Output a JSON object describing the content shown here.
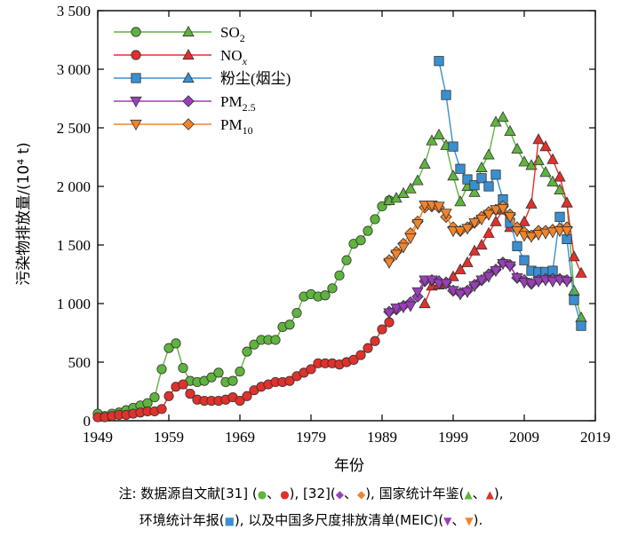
{
  "chart_data": {
    "type": "line",
    "xlabel": "年份",
    "ylabel": "污染物排放量/(10⁴ t)",
    "xlim": [
      1949,
      2019
    ],
    "ylim": [
      0,
      3500
    ],
    "xticks": [
      "1949",
      "1959",
      "1969",
      "1979",
      "1989",
      "1999",
      "2009",
      "2019"
    ],
    "yticks": [
      "0",
      "500",
      "1 000",
      "1 500",
      "2 000",
      "2 500",
      "3 000",
      "3 500"
    ],
    "legend_position": "top-left",
    "legend": [
      {
        "label": "SO",
        "sub": "2",
        "color": "#5fb43d",
        "markers": [
          "circle",
          "triangle-up"
        ]
      },
      {
        "label": "NO",
        "sub": "x",
        "sub_italic": true,
        "color": "#e0312b",
        "markers": [
          "circle",
          "triangle-up"
        ]
      },
      {
        "label": "粉尘(烟尘)",
        "sub": "",
        "color": "#3a8fd0",
        "markers": [
          "square",
          "triangle-up"
        ]
      },
      {
        "label": "PM",
        "sub": "2.5",
        "color": "#9a3fb8",
        "markers": [
          "triangle-down",
          "diamond"
        ]
      },
      {
        "label": "PM",
        "sub": "10",
        "color": "#f0842c",
        "markers": [
          "triangle-down",
          "diamond"
        ]
      }
    ],
    "series": [
      {
        "pollutant": "SO2",
        "source": "[31]",
        "marker": "circle",
        "color": "#5fb43d",
        "x": [
          1949,
          1950,
          1951,
          1952,
          1953,
          1954,
          1955,
          1956,
          1957,
          1958,
          1959,
          1960,
          1961,
          1962,
          1963,
          1964,
          1965,
          1966,
          1967,
          1968,
          1969,
          1970,
          1971,
          1972,
          1973,
          1974,
          1975,
          1976,
          1977,
          1978,
          1979,
          1980,
          1981,
          1982,
          1983,
          1984,
          1985,
          1986,
          1987,
          1988,
          1989,
          1990
        ],
        "y": [
          60,
          40,
          60,
          70,
          90,
          110,
          130,
          150,
          200,
          440,
          620,
          660,
          450,
          340,
          330,
          340,
          370,
          410,
          330,
          340,
          420,
          590,
          650,
          690,
          690,
          690,
          800,
          820,
          920,
          1060,
          1080,
          1060,
          1070,
          1130,
          1240,
          1370,
          1510,
          1540,
          1620,
          1720,
          1830,
          1880
        ]
      },
      {
        "pollutant": "NOx",
        "source": "[31]",
        "marker": "circle",
        "color": "#e0312b",
        "x": [
          1949,
          1950,
          1951,
          1952,
          1953,
          1954,
          1955,
          1956,
          1957,
          1958,
          1959,
          1960,
          1961,
          1962,
          1963,
          1964,
          1965,
          1966,
          1967,
          1968,
          1969,
          1970,
          1971,
          1972,
          1973,
          1974,
          1975,
          1976,
          1977,
          1978,
          1979,
          1980,
          1981,
          1982,
          1983,
          1984,
          1985,
          1986,
          1987,
          1988,
          1989,
          1990
        ],
        "y": [
          30,
          30,
          40,
          50,
          50,
          60,
          70,
          80,
          80,
          100,
          210,
          290,
          310,
          230,
          180,
          170,
          170,
          170,
          180,
          200,
          170,
          210,
          260,
          290,
          310,
          330,
          330,
          340,
          380,
          410,
          440,
          490,
          490,
          490,
          480,
          500,
          520,
          560,
          620,
          680,
          780,
          840
        ]
      },
      {
        "pollutant": "SO2",
        "source": "国家统计年鉴",
        "marker": "triangle-up",
        "color": "#5fb43d",
        "x": [
          1990,
          1991,
          1992,
          1993,
          1994,
          1995,
          1996,
          1997,
          1998,
          1999,
          2000,
          2001,
          2002,
          2003,
          2004,
          2005,
          2006,
          2007,
          2008,
          2009,
          2010,
          2011,
          2012,
          2013,
          2014,
          2015,
          2016,
          2017
        ],
        "y": [
          1880,
          1900,
          1940,
          1980,
          2050,
          2190,
          2390,
          2440,
          2350,
          2090,
          1870,
          2000,
          1950,
          2160,
          2270,
          2550,
          2590,
          2470,
          2320,
          2210,
          2180,
          2220,
          2120,
          2040,
          1970,
          1860,
          1110,
          880
        ]
      },
      {
        "pollutant": "NOx",
        "source": "国家统计年鉴",
        "marker": "triangle-up",
        "color": "#e0312b",
        "x": [
          1995,
          1996,
          1997,
          1998,
          1999,
          2000,
          2001,
          2002,
          2003,
          2004,
          2005,
          2006,
          2007,
          2008,
          2009,
          2010,
          2011,
          2012,
          2013,
          2014,
          2015,
          2016,
          2017
        ],
        "y": [
          1000,
          1150,
          1160,
          1170,
          1230,
          1290,
          1350,
          1450,
          1500,
          1600,
          1700,
          1800,
          1650,
          1650,
          1700,
          1850,
          2400,
          2340,
          2230,
          2080,
          1860,
          1400,
          1260
        ]
      },
      {
        "pollutant": "粉尘(烟尘)",
        "source": "环境统计年报",
        "marker": "square",
        "color": "#3a8fd0",
        "x": [
          1997,
          1998,
          1999,
          2000,
          2001,
          2002,
          2003,
          2004,
          2005,
          2006,
          2007,
          2008,
          2009,
          2010,
          2011,
          2012,
          2013,
          2014,
          2015,
          2016,
          2017
        ],
        "y": [
          3070,
          2780,
          2340,
          2150,
          2060,
          2010,
          2070,
          2000,
          2100,
          1890,
          1690,
          1490,
          1370,
          1280,
          1270,
          1270,
          1280,
          1740,
          1550,
          1030,
          810
        ]
      },
      {
        "pollutant": "PM2.5",
        "source": "[32]",
        "marker": "diamond",
        "color": "#9a3fb8",
        "x": [
          1990,
          1991,
          1992,
          1993,
          1994,
          1995,
          1996,
          1997,
          1998,
          1999,
          2000,
          2001,
          2002,
          2003,
          2004,
          2005,
          2006,
          2007,
          2008,
          2009,
          2010,
          2011,
          2012,
          2013,
          2014,
          2015
        ],
        "y": [
          930,
          950,
          980,
          1010,
          1060,
          1190,
          1200,
          1190,
          1180,
          1110,
          1090,
          1110,
          1160,
          1200,
          1250,
          1290,
          1350,
          1330,
          1220,
          1200,
          1170,
          1200,
          1210,
          1210,
          1210,
          1200
        ]
      },
      {
        "pollutant": "PM2.5",
        "source": "MEIC",
        "marker": "triangle-down",
        "color": "#9a3fb8",
        "x": [
          1990,
          1991,
          1992,
          1993,
          1994,
          1995,
          1996,
          1997,
          1998,
          1999,
          2000,
          2001,
          2002,
          2003,
          2004,
          2005,
          2006,
          2007,
          2008,
          2009,
          2010,
          2011,
          2012,
          2013,
          2014,
          2015
        ],
        "y": [
          920,
          960,
          970,
          980,
          1100,
          1200,
          1200,
          1170,
          1170,
          1110,
          1080,
          1100,
          1150,
          1200,
          1230,
          1280,
          1340,
          1320,
          1220,
          1180,
          1170,
          1190,
          1200,
          1190,
          1200,
          1190
        ]
      },
      {
        "pollutant": "PM10",
        "source": "[32]",
        "marker": "diamond",
        "color": "#f0842c",
        "x": [
          1990,
          1991,
          1992,
          1993,
          1994,
          1995,
          1996,
          1997,
          1998,
          1999,
          2000,
          2001,
          2002,
          2003,
          2004,
          2005,
          2006,
          2007,
          2008,
          2009,
          2010,
          2011,
          2012,
          2013,
          2014,
          2015
        ],
        "y": [
          1370,
          1440,
          1510,
          1600,
          1700,
          1820,
          1830,
          1820,
          1740,
          1650,
          1620,
          1650,
          1690,
          1740,
          1780,
          1800,
          1830,
          1760,
          1650,
          1610,
          1580,
          1620,
          1620,
          1630,
          1640,
          1650
        ]
      },
      {
        "pollutant": "PM10",
        "source": "MEIC",
        "marker": "triangle-down",
        "color": "#f0842c",
        "x": [
          1990,
          1991,
          1992,
          1993,
          1994,
          1995,
          1996,
          1997,
          1998,
          1999,
          2000,
          2001,
          2002,
          2003,
          2004,
          2005,
          2006,
          2007,
          2008,
          2009,
          2010,
          2011,
          2012,
          2013,
          2014,
          2015
        ],
        "y": [
          1350,
          1420,
          1480,
          1560,
          1680,
          1840,
          1840,
          1830,
          1770,
          1620,
          1620,
          1640,
          1690,
          1720,
          1760,
          1800,
          1810,
          1740,
          1620,
          1580,
          1570,
          1590,
          1600,
          1610,
          1620,
          1620
        ]
      }
    ]
  },
  "note": {
    "prefix": "注: 数据源自文献[31] (",
    "sep1": "、",
    "mid1": "), [32](",
    "sep2": "、",
    "mid2": "), 国家统计年鉴(",
    "sep3": "、",
    "end1": "),",
    "line2_prefix": "环境统计年报(",
    "mid3": "), 以及中国多尺度排放清单(MEIC)(",
    "sep4": "、",
    "end2": ")."
  }
}
